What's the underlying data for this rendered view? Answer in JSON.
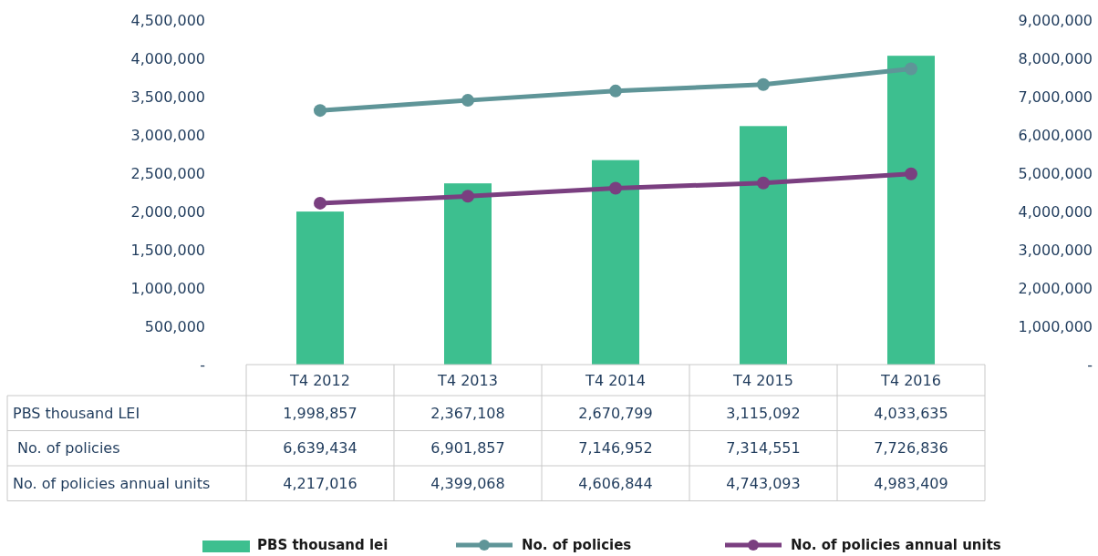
{
  "chart_data": {
    "type": "bar",
    "categories": [
      "T4 2012",
      "T4 2013",
      "T4 2014",
      "T4 2015",
      "T4 2016"
    ],
    "series": [
      {
        "name": "PBS thousand lei",
        "color": "#3dbf8f",
        "values": [
          1998857,
          2367108,
          2670799,
          3115092,
          4033635
        ],
        "value_labels": [
          "1,998,857",
          "2,367,108",
          "2,670,799",
          "3,115,092",
          "4,033,635"
        ]
      },
      {
        "name": "No. of policies",
        "type": "line",
        "axis": "y2",
        "color": "#5f9598",
        "marker": "circle",
        "values": [
          6639434,
          6901857,
          7146952,
          7314551,
          7726836
        ],
        "value_labels": [
          "6,639,434",
          "6,901,857",
          "7,146,952",
          "7,314,551",
          "7,726,836"
        ]
      },
      {
        "name": "No. of policies annual units",
        "type": "line",
        "axis": "y2",
        "color": "#7a3f80",
        "marker": "circle",
        "values": [
          4217016,
          4399068,
          4606844,
          4743093,
          4983409
        ],
        "value_labels": [
          "4,217,016",
          "4,399,068",
          "4,606,844",
          "4,743,093",
          "4,983,409"
        ]
      }
    ],
    "annotations": [
      "PBS thousand LEI",
      " No. of policies",
      "No. of policies annual units"
    ],
    "ylim": [
      0,
      4500000
    ],
    "yticks": [
      {
        "value": 0,
        "label": "-"
      },
      {
        "value": 500000,
        "label": "500,000"
      },
      {
        "value": 1000000,
        "label": "1,000,000"
      },
      {
        "value": 1500000,
        "label": "1,500,000"
      },
      {
        "value": 2000000,
        "label": "2,000,000"
      },
      {
        "value": 2500000,
        "label": "2,500,000"
      },
      {
        "value": 3000000,
        "label": "3,000,000"
      },
      {
        "value": 3500000,
        "label": "3,500,000"
      },
      {
        "value": 4000000,
        "label": "4,000,000"
      },
      {
        "value": 4500000,
        "label": "4,500,000"
      }
    ],
    "y2lim": [
      0,
      9000000
    ],
    "y2ticks": [
      {
        "value": 0,
        "label": "-"
      },
      {
        "value": 1000000,
        "label": "1,000,000"
      },
      {
        "value": 2000000,
        "label": "2,000,000"
      },
      {
        "value": 3000000,
        "label": "3,000,000"
      },
      {
        "value": 4000000,
        "label": "4,000,000"
      },
      {
        "value": 5000000,
        "label": "5,000,000"
      },
      {
        "value": 6000000,
        "label": "6,000,000"
      },
      {
        "value": 7000000,
        "label": "7,000,000"
      },
      {
        "value": 8000000,
        "label": "8,000,000"
      },
      {
        "value": 9000000,
        "label": "9,000,000"
      }
    ],
    "legend": "bottom",
    "grid": false
  }
}
